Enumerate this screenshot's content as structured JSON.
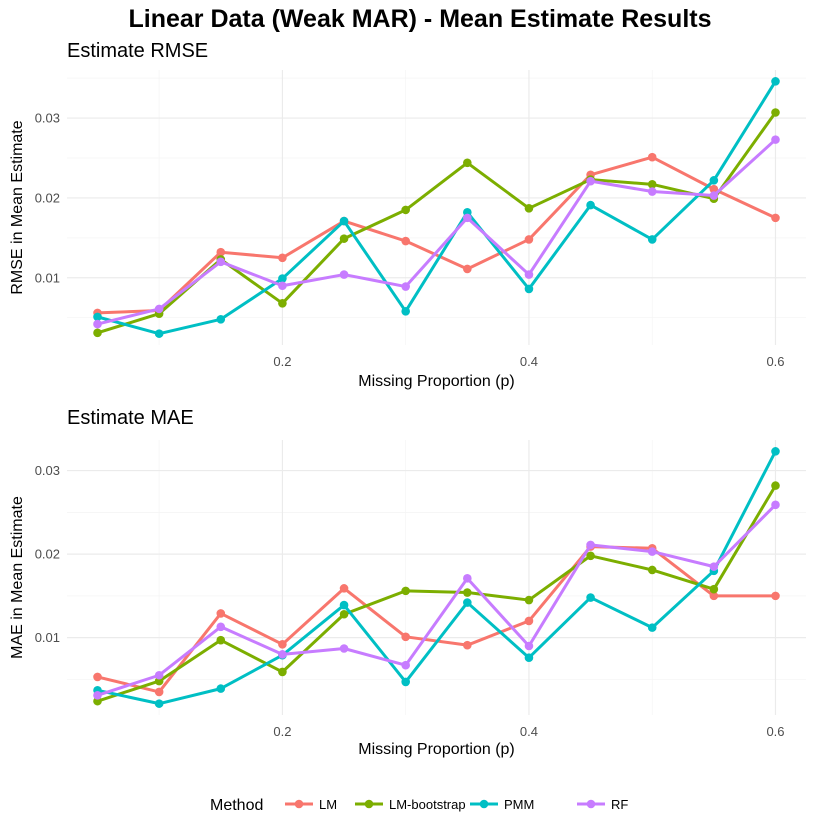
{
  "title": "Linear Data (Weak MAR) - Mean Estimate Results",
  "legend": {
    "title": "Method",
    "entries": [
      {
        "name": "LM",
        "color": "#F8766D"
      },
      {
        "name": "LM-bootstrap",
        "color": "#7CAE00"
      },
      {
        "name": "PMM",
        "color": "#00BFC4"
      },
      {
        "name": "RF",
        "color": "#C77CFF"
      }
    ]
  },
  "chart_data": [
    {
      "type": "line",
      "title": "Estimate RMSE",
      "xlabel": "Missing Proportion (p)",
      "ylabel": "RMSE in Mean Estimate",
      "xlim": [
        0.05,
        0.6
      ],
      "ylim": [
        0.003,
        0.0346
      ],
      "xticks": [
        0.2,
        0.4,
        0.6
      ],
      "xtick_labels": [
        "0.2",
        "0.4",
        "0.6"
      ],
      "yticks": [
        0.01,
        0.02,
        0.03
      ],
      "ytick_labels": [
        "0.01",
        "0.02",
        "0.03"
      ],
      "grid": true,
      "x": [
        0.05,
        0.1,
        0.15,
        0.2,
        0.25,
        0.3,
        0.35,
        0.4,
        0.45,
        0.5,
        0.55,
        0.6
      ],
      "series": [
        {
          "name": "LM",
          "color": "#F8766D",
          "values": [
            0.0056,
            0.0059,
            0.0132,
            0.0125,
            0.0171,
            0.0146,
            0.0111,
            0.0148,
            0.0229,
            0.0251,
            0.0211,
            0.0175
          ]
        },
        {
          "name": "LM-bootstrap",
          "color": "#7CAE00",
          "values": [
            0.0031,
            0.0055,
            0.0123,
            0.0068,
            0.0149,
            0.0185,
            0.0244,
            0.0187,
            0.0223,
            0.0217,
            0.0199,
            0.0307
          ]
        },
        {
          "name": "PMM",
          "color": "#00BFC4",
          "values": [
            0.0051,
            0.003,
            0.0048,
            0.0099,
            0.0171,
            0.0058,
            0.0182,
            0.0086,
            0.0191,
            0.0148,
            0.0222,
            0.0346
          ]
        },
        {
          "name": "RF",
          "color": "#C77CFF",
          "values": [
            0.0042,
            0.0061,
            0.012,
            0.009,
            0.0104,
            0.0089,
            0.0175,
            0.0104,
            0.0221,
            0.0208,
            0.0203,
            0.0273
          ]
        }
      ]
    },
    {
      "type": "line",
      "title": "Estimate MAE",
      "xlabel": "Missing Proportion (p)",
      "ylabel": "MAE in Mean Estimate",
      "xlim": [
        0.05,
        0.6
      ],
      "ylim": [
        0.0021,
        0.0323
      ],
      "xticks": [
        0.2,
        0.4,
        0.6
      ],
      "xtick_labels": [
        "0.2",
        "0.4",
        "0.6"
      ],
      "yticks": [
        0.01,
        0.02,
        0.03
      ],
      "ytick_labels": [
        "0.01",
        "0.02",
        "0.03"
      ],
      "grid": true,
      "x": [
        0.05,
        0.1,
        0.15,
        0.2,
        0.25,
        0.3,
        0.35,
        0.4,
        0.45,
        0.5,
        0.55,
        0.6
      ],
      "series": [
        {
          "name": "LM",
          "color": "#F8766D",
          "values": [
            0.0053,
            0.0035,
            0.0129,
            0.0092,
            0.0159,
            0.0101,
            0.0091,
            0.012,
            0.0209,
            0.0207,
            0.015,
            0.015
          ]
        },
        {
          "name": "LM-bootstrap",
          "color": "#7CAE00",
          "values": [
            0.0024,
            0.0048,
            0.0097,
            0.0059,
            0.0128,
            0.0156,
            0.0154,
            0.0145,
            0.0198,
            0.0181,
            0.0158,
            0.0282
          ]
        },
        {
          "name": "PMM",
          "color": "#00BFC4",
          "values": [
            0.0037,
            0.0021,
            0.0039,
            0.0079,
            0.0139,
            0.0047,
            0.0142,
            0.0076,
            0.0148,
            0.0112,
            0.018,
            0.0323
          ]
        },
        {
          "name": "RF",
          "color": "#C77CFF",
          "values": [
            0.0031,
            0.0055,
            0.0113,
            0.008,
            0.0087,
            0.0067,
            0.0171,
            0.009,
            0.0211,
            0.0203,
            0.0185,
            0.0259
          ]
        }
      ]
    }
  ]
}
